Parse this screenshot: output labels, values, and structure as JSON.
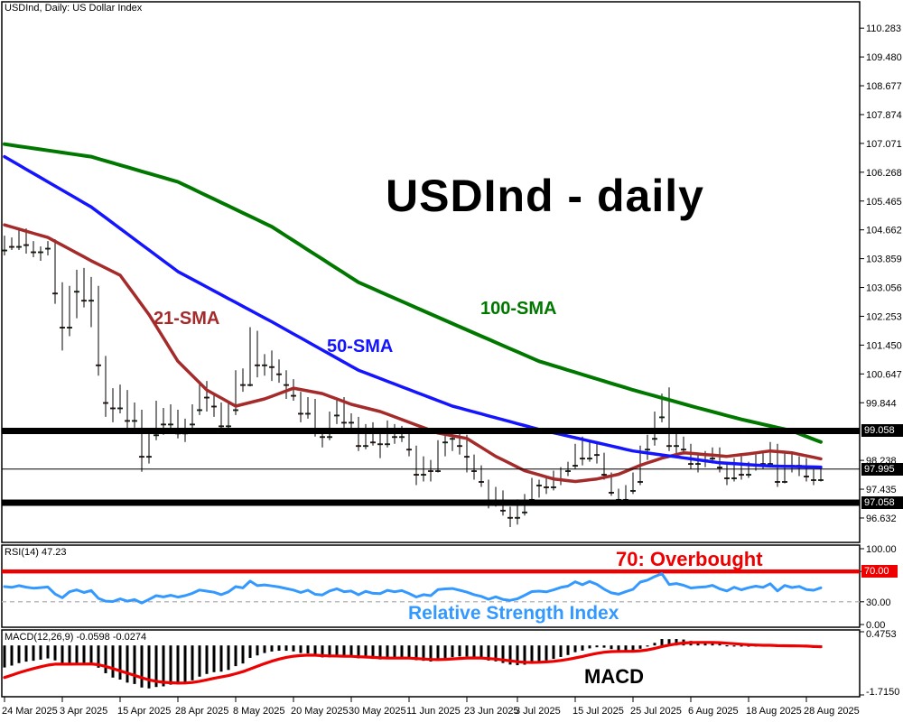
{
  "window": {
    "symbol_label": "USDInd, Daily:  US Dollar Index"
  },
  "chart_data": [
    {
      "type": "candlestick",
      "title": "USDInd - daily",
      "ylim": [
        95.952,
        111.017
      ],
      "price_axis_labels": [
        "110.283",
        "109.480",
        "108.677",
        "107.874",
        "107.071",
        "106.268",
        "105.465",
        "104.662",
        "103.859",
        "103.056",
        "102.253",
        "101.450",
        "100.647",
        "99.844",
        "98.238",
        "97.435",
        "96.632"
      ],
      "x_tick_labels": [
        "24 Mar 2025",
        "3 Apr 2025",
        "15 Apr 2025",
        "28 Apr 2025",
        "8 May 2025",
        "20 May 2025",
        "30 May 2025",
        "11 Jun 2025",
        "23 Jun 2025",
        "3 Jul 2025",
        "15 Jul 2025",
        "25 Jul 2025",
        "6 Aug 2025",
        "18 Aug 2025",
        "28 Aug 2025"
      ],
      "x_tick_indices": [
        0,
        8,
        16,
        24,
        32,
        40,
        48,
        56,
        64,
        71,
        79,
        87,
        95,
        103,
        111
      ],
      "hlines": [
        {
          "value": 99.058,
          "label": "99.058",
          "role": "resistance"
        },
        {
          "value": 97.058,
          "label": "97.058",
          "role": "support"
        }
      ],
      "current_price": {
        "value": 97.995,
        "label": "97.995"
      },
      "colors": {
        "up": "#33cc33",
        "down": "#ff4e26",
        "wick": "#000000",
        "line": "#000000"
      },
      "candles": [
        [
          104.1,
          104.5,
          103.95,
          104.35
        ],
        [
          104.35,
          104.45,
          104.1,
          104.2
        ],
        [
          104.2,
          104.65,
          104.1,
          104.55
        ],
        [
          104.55,
          104.7,
          104.0,
          104.25
        ],
        [
          104.25,
          104.35,
          103.9,
          104.05
        ],
        [
          104.05,
          104.2,
          103.8,
          104.15
        ],
        [
          104.15,
          104.35,
          103.95,
          104.25
        ],
        [
          104.25,
          104.4,
          102.6,
          102.9
        ],
        [
          102.9,
          103.2,
          101.3,
          101.95
        ],
        [
          101.95,
          103.1,
          101.7,
          102.95
        ],
        [
          102.95,
          103.55,
          102.2,
          103.3
        ],
        [
          103.3,
          103.6,
          102.5,
          102.7
        ],
        [
          102.7,
          103.35,
          101.95,
          103.05
        ],
        [
          103.05,
          103.1,
          100.6,
          100.9
        ],
        [
          100.9,
          101.15,
          99.45,
          99.85
        ],
        [
          99.85,
          100.25,
          99.3,
          99.7
        ],
        [
          99.7,
          100.35,
          99.55,
          100.15
        ],
        [
          100.15,
          100.2,
          99.1,
          99.35
        ],
        [
          99.35,
          99.85,
          99.15,
          99.6
        ],
        [
          99.6,
          99.65,
          97.92,
          98.35
        ],
        [
          98.35,
          99.1,
          98.15,
          98.95
        ],
        [
          98.95,
          99.9,
          98.8,
          99.65
        ],
        [
          99.65,
          99.7,
          98.95,
          99.25
        ],
        [
          99.25,
          99.8,
          99.1,
          99.55
        ],
        [
          99.55,
          99.65,
          98.85,
          99.0
        ],
        [
          99.0,
          99.4,
          98.75,
          99.25
        ],
        [
          99.25,
          99.8,
          99.0,
          99.65
        ],
        [
          99.65,
          100.4,
          99.5,
          100.25
        ],
        [
          100.25,
          100.45,
          99.6,
          100.0
        ],
        [
          100.0,
          100.05,
          99.45,
          99.75
        ],
        [
          99.75,
          99.85,
          99.0,
          99.2
        ],
        [
          99.2,
          99.9,
          99.05,
          99.65
        ],
        [
          99.65,
          100.75,
          99.5,
          100.6
        ],
        [
          100.6,
          100.8,
          100.15,
          100.35
        ],
        [
          100.35,
          101.95,
          100.3,
          101.8
        ],
        [
          101.8,
          101.85,
          100.55,
          100.9
        ],
        [
          100.9,
          101.2,
          100.6,
          101.05
        ],
        [
          101.05,
          101.3,
          100.45,
          100.85
        ],
        [
          100.85,
          101.05,
          100.4,
          100.65
        ],
        [
          100.65,
          100.75,
          99.95,
          100.35
        ],
        [
          100.35,
          100.5,
          99.9,
          100.05
        ],
        [
          100.05,
          100.15,
          99.3,
          99.55
        ],
        [
          99.55,
          100.0,
          99.4,
          99.9
        ],
        [
          99.9,
          99.95,
          98.9,
          99.05
        ],
        [
          99.05,
          99.1,
          98.6,
          98.9
        ],
        [
          98.9,
          99.6,
          98.8,
          99.5
        ],
        [
          99.5,
          99.95,
          99.25,
          99.85
        ],
        [
          99.85,
          100.0,
          99.15,
          99.3
        ],
        [
          99.3,
          99.55,
          99.05,
          99.4
        ],
        [
          99.4,
          99.45,
          98.5,
          98.65
        ],
        [
          98.65,
          99.25,
          98.55,
          99.15
        ],
        [
          99.15,
          99.3,
          98.65,
          98.75
        ],
        [
          98.75,
          99.05,
          98.3,
          98.7
        ],
        [
          98.7,
          99.35,
          98.6,
          99.15
        ],
        [
          99.15,
          99.25,
          98.7,
          98.9
        ],
        [
          98.9,
          99.2,
          98.75,
          99.05
        ],
        [
          99.05,
          99.1,
          98.35,
          98.55
        ],
        [
          98.55,
          98.65,
          97.55,
          97.85
        ],
        [
          97.85,
          98.35,
          97.65,
          98.15
        ],
        [
          98.15,
          98.25,
          97.65,
          97.95
        ],
        [
          97.95,
          98.8,
          97.9,
          98.75
        ],
        [
          98.75,
          99.05,
          98.35,
          98.85
        ],
        [
          98.85,
          99.0,
          98.5,
          98.9
        ],
        [
          98.9,
          99.05,
          98.4,
          98.65
        ],
        [
          98.65,
          98.95,
          97.9,
          98.35
        ],
        [
          98.35,
          98.4,
          97.7,
          97.95
        ],
        [
          97.95,
          98.1,
          97.5,
          97.65
        ],
        [
          97.65,
          97.7,
          96.9,
          97.1
        ],
        [
          97.1,
          97.5,
          96.95,
          97.35
        ],
        [
          97.35,
          97.4,
          96.7,
          96.85
        ],
        [
          96.85,
          96.95,
          96.38,
          96.65
        ],
        [
          96.65,
          97.15,
          96.45,
          96.8
        ],
        [
          96.8,
          97.3,
          96.7,
          97.15
        ],
        [
          97.15,
          97.75,
          97.05,
          97.55
        ],
        [
          97.55,
          97.7,
          97.2,
          97.6
        ],
        [
          97.6,
          97.8,
          97.3,
          97.5
        ],
        [
          97.5,
          97.95,
          97.4,
          97.7
        ],
        [
          97.7,
          98.05,
          97.55,
          97.95
        ],
        [
          97.95,
          98.2,
          97.8,
          98.1
        ],
        [
          98.1,
          98.7,
          98.0,
          98.6
        ],
        [
          98.6,
          98.9,
          98.1,
          98.3
        ],
        [
          98.3,
          98.8,
          98.2,
          98.7
        ],
        [
          98.7,
          98.75,
          98.15,
          98.4
        ],
        [
          98.4,
          98.45,
          97.7,
          97.85
        ],
        [
          97.85,
          97.9,
          97.25,
          97.35
        ],
        [
          97.35,
          97.45,
          97.05,
          97.15
        ],
        [
          97.15,
          97.55,
          97.0,
          97.4
        ],
        [
          97.4,
          97.9,
          97.3,
          97.65
        ],
        [
          97.65,
          98.65,
          97.55,
          98.55
        ],
        [
          98.55,
          98.95,
          98.25,
          98.85
        ],
        [
          98.85,
          99.6,
          98.65,
          99.45
        ],
        [
          99.45,
          100.1,
          99.3,
          100.0
        ],
        [
          100.0,
          100.27,
          98.5,
          98.65
        ],
        [
          98.65,
          99.0,
          98.35,
          98.8
        ],
        [
          98.8,
          98.9,
          98.4,
          98.55
        ],
        [
          98.55,
          98.7,
          98.0,
          98.15
        ],
        [
          98.15,
          98.4,
          97.9,
          98.25
        ],
        [
          98.25,
          98.5,
          98.05,
          98.3
        ],
        [
          98.3,
          98.6,
          98.15,
          98.5
        ],
        [
          98.5,
          98.6,
          97.9,
          98.05
        ],
        [
          98.05,
          98.15,
          97.55,
          97.75
        ],
        [
          97.75,
          98.3,
          97.65,
          98.2
        ],
        [
          98.2,
          98.35,
          97.7,
          97.85
        ],
        [
          97.85,
          98.2,
          97.75,
          98.1
        ],
        [
          98.1,
          98.4,
          97.95,
          98.3
        ],
        [
          98.3,
          98.45,
          98.0,
          98.15
        ],
        [
          98.15,
          98.75,
          98.05,
          98.6
        ],
        [
          98.6,
          98.7,
          97.5,
          97.65
        ],
        [
          97.65,
          98.5,
          97.6,
          98.4
        ],
        [
          98.4,
          98.45,
          97.9,
          98.1
        ],
        [
          98.1,
          98.35,
          97.8,
          98.25
        ],
        [
          98.25,
          98.3,
          97.65,
          97.8
        ],
        [
          97.8,
          98.0,
          97.55,
          97.7
        ],
        [
          97.7,
          98.05,
          97.65,
          97.995
        ]
      ],
      "sma_21": {
        "label": "21-SMA",
        "color": "#a52a2a",
        "anchors": [
          [
            0,
            104.8
          ],
          [
            6,
            104.45
          ],
          [
            12,
            103.8
          ],
          [
            16,
            103.4
          ],
          [
            20,
            102.3
          ],
          [
            24,
            101.0
          ],
          [
            28,
            100.2
          ],
          [
            32,
            99.75
          ],
          [
            36,
            99.95
          ],
          [
            40,
            100.25
          ],
          [
            44,
            100.1
          ],
          [
            48,
            99.8
          ],
          [
            52,
            99.6
          ],
          [
            56,
            99.3
          ],
          [
            60,
            99.0
          ],
          [
            64,
            98.85
          ],
          [
            68,
            98.35
          ],
          [
            72,
            97.95
          ],
          [
            76,
            97.72
          ],
          [
            79,
            97.65
          ],
          [
            82,
            97.72
          ],
          [
            85,
            97.85
          ],
          [
            88,
            98.1
          ],
          [
            91,
            98.3
          ],
          [
            94,
            98.45
          ],
          [
            97,
            98.4
          ],
          [
            100,
            98.35
          ],
          [
            103,
            98.42
          ],
          [
            106,
            98.5
          ],
          [
            109,
            98.45
          ],
          [
            113,
            98.28
          ]
        ]
      },
      "sma_50": {
        "label": "50-SMA",
        "color": "#1414ff",
        "anchors": [
          [
            0,
            106.7
          ],
          [
            12,
            105.3
          ],
          [
            24,
            103.5
          ],
          [
            37,
            102.1
          ],
          [
            49,
            100.75
          ],
          [
            62,
            99.75
          ],
          [
            74,
            99.1
          ],
          [
            87,
            98.5
          ],
          [
            99,
            98.17
          ],
          [
            106,
            98.08
          ],
          [
            113,
            98.05
          ]
        ]
      },
      "sma_100": {
        "label": "100-SMA",
        "color": "#007800",
        "anchors": [
          [
            0,
            107.05
          ],
          [
            12,
            106.7
          ],
          [
            24,
            106.0
          ],
          [
            37,
            104.75
          ],
          [
            49,
            103.2
          ],
          [
            62,
            102.05
          ],
          [
            74,
            101.0
          ],
          [
            87,
            100.2
          ],
          [
            96,
            99.7
          ],
          [
            102,
            99.38
          ],
          [
            109,
            99.06
          ],
          [
            113,
            98.75
          ]
        ]
      }
    },
    {
      "type": "line",
      "name": "RSI",
      "header": "RSI(14) 47.23",
      "params": {
        "period": 14,
        "current": 47.23
      },
      "ylim": [
        0,
        100
      ],
      "axis_labels": [
        {
          "value": 100,
          "label": "100.00"
        },
        {
          "value": 30,
          "label": "30.00"
        },
        {
          "value": 0,
          "label": "0.00"
        }
      ],
      "overbought": {
        "value": 70,
        "axis_label": "70.00",
        "annotation": "70: Overbought",
        "color": "#ee0000"
      },
      "dashed_level": 30,
      "watermark": "Relative Strength Index",
      "line_color": "#3399ff",
      "seed_avg_gain": 0.3,
      "seed_avg_loss": 0.3
    },
    {
      "type": "bar",
      "name": "MACD",
      "header": "MACD(12,26,9) -0.0598 -0.0274",
      "params": {
        "fast": 12,
        "slow": 26,
        "signal": 9,
        "current_macd": -0.0598,
        "current_signal": -0.0274
      },
      "ylim": [
        -1.715,
        0.4753
      ],
      "axis_labels": [
        {
          "value": 0.4753,
          "label": "0.4753"
        },
        {
          "value": -1.715,
          "label": "-1.7150"
        }
      ],
      "watermark": "MACD",
      "histogram_color": "#000000",
      "signal_color": "#ee0000",
      "ema12_seed_offset": -0.3,
      "ema26_seed_offset": 0.55,
      "signal_seed": -1.2
    }
  ]
}
